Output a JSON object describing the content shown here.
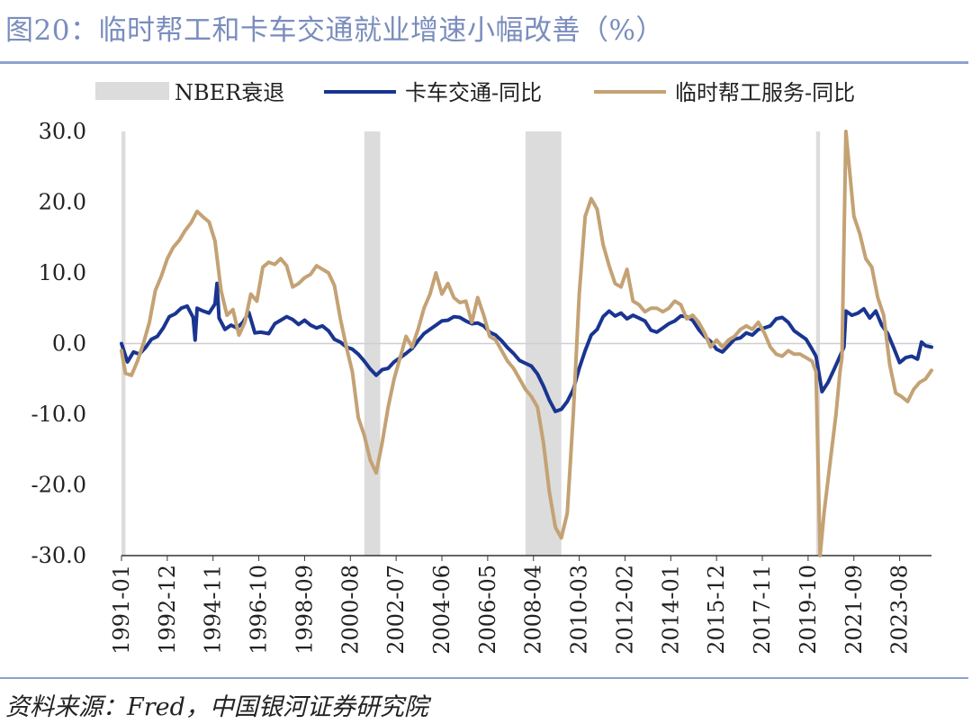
{
  "header": {
    "title": "图20：临时帮工和卡车交通就业增速小幅改善（%）"
  },
  "footer": {
    "source": "资料来源：Fred，中国银河证券研究院"
  },
  "chart_data": {
    "type": "line",
    "y_range": [
      -30,
      30
    ],
    "y_ticks": [
      "30.0",
      "20.0",
      "10.0",
      "0.0",
      "-10.0",
      "-20.0",
      "-30.0"
    ],
    "y_tick_values": [
      30,
      20,
      10,
      0,
      -10,
      -20,
      -30
    ],
    "x_range": [
      "1991-01",
      "2024-12"
    ],
    "x_ticks": [
      "1991-01",
      "1992-12",
      "1994-11",
      "1996-10",
      "1998-09",
      "2000-08",
      "2002-07",
      "2004-06",
      "2006-05",
      "2008-04",
      "2010-03",
      "2012-02",
      "2014-01",
      "2015-12",
      "2017-11",
      "2019-10",
      "2021-09",
      "2023-08"
    ],
    "legend": {
      "position": "top",
      "recession_label": "NBER衰退"
    },
    "recessions": [
      {
        "start": "1991-01",
        "end": "1991-03"
      },
      {
        "start": "2001-03",
        "end": "2001-11"
      },
      {
        "start": "2007-12",
        "end": "2009-06"
      },
      {
        "start": "2020-02",
        "end": "2020-04"
      }
    ],
    "colors": {
      "recession": "#dcdcdc",
      "truck": "#1a3590",
      "temp": "#c4a274",
      "axis": "#333333"
    },
    "series": [
      {
        "name": "卡车交通-同比",
        "color": "#1a3590",
        "points": [
          [
            "1991-01",
            0.0
          ],
          [
            "1991-04",
            -2.6
          ],
          [
            "1991-07",
            -1.2
          ],
          [
            "1991-10",
            -1.5
          ],
          [
            "1992-01",
            -0.6
          ],
          [
            "1992-04",
            0.6
          ],
          [
            "1992-07",
            1.0
          ],
          [
            "1992-10",
            2.2
          ],
          [
            "1993-01",
            3.8
          ],
          [
            "1993-04",
            4.2
          ],
          [
            "1993-07",
            5.0
          ],
          [
            "1993-10",
            5.3
          ],
          [
            "1994-01",
            3.7
          ],
          [
            "1994-02",
            0.5
          ],
          [
            "1994-03",
            5.0
          ],
          [
            "1994-06",
            4.6
          ],
          [
            "1994-09",
            4.3
          ],
          [
            "1994-12",
            5.6
          ],
          [
            "1995-01",
            8.5
          ],
          [
            "1995-02",
            3.6
          ],
          [
            "1995-05",
            2.0
          ],
          [
            "1995-08",
            2.6
          ],
          [
            "1995-11",
            2.2
          ],
          [
            "1996-02",
            3.0
          ],
          [
            "1996-05",
            4.4
          ],
          [
            "1996-08",
            1.5
          ],
          [
            "1996-11",
            1.6
          ],
          [
            "1997-03",
            1.4
          ],
          [
            "1997-06",
            2.8
          ],
          [
            "1997-09",
            3.3
          ],
          [
            "1997-12",
            3.8
          ],
          [
            "1998-03",
            3.4
          ],
          [
            "1998-06",
            2.7
          ],
          [
            "1998-09",
            3.3
          ],
          [
            "1998-12",
            2.6
          ],
          [
            "1999-03",
            2.2
          ],
          [
            "1999-06",
            2.5
          ],
          [
            "1999-09",
            1.8
          ],
          [
            "1999-12",
            0.6
          ],
          [
            "2000-03",
            0.2
          ],
          [
            "2000-06",
            -0.5
          ],
          [
            "2000-09",
            -0.8
          ],
          [
            "2000-12",
            -1.5
          ],
          [
            "2001-03",
            -2.5
          ],
          [
            "2001-06",
            -3.6
          ],
          [
            "2001-09",
            -4.5
          ],
          [
            "2001-12",
            -3.7
          ],
          [
            "2002-03",
            -3.5
          ],
          [
            "2002-06",
            -2.6
          ],
          [
            "2002-09",
            -2.0
          ],
          [
            "2002-12",
            -1.4
          ],
          [
            "2003-03",
            -0.7
          ],
          [
            "2003-06",
            0.4
          ],
          [
            "2003-09",
            1.4
          ],
          [
            "2003-12",
            2.0
          ],
          [
            "2004-03",
            2.6
          ],
          [
            "2004-06",
            3.2
          ],
          [
            "2004-09",
            3.3
          ],
          [
            "2004-12",
            3.8
          ],
          [
            "2005-03",
            3.7
          ],
          [
            "2005-06",
            3.2
          ],
          [
            "2005-09",
            2.8
          ],
          [
            "2005-12",
            2.9
          ],
          [
            "2006-03",
            2.5
          ],
          [
            "2006-06",
            1.6
          ],
          [
            "2006-09",
            1.2
          ],
          [
            "2006-12",
            0.4
          ],
          [
            "2007-03",
            -0.6
          ],
          [
            "2007-06",
            -1.4
          ],
          [
            "2007-09",
            -2.4
          ],
          [
            "2007-12",
            -2.8
          ],
          [
            "2008-03",
            -3.2
          ],
          [
            "2008-06",
            -4.3
          ],
          [
            "2008-09",
            -6.0
          ],
          [
            "2008-12",
            -8.0
          ],
          [
            "2009-03",
            -9.6
          ],
          [
            "2009-06",
            -9.3
          ],
          [
            "2009-09",
            -8.2
          ],
          [
            "2009-12",
            -6.5
          ],
          [
            "2010-03",
            -3.5
          ],
          [
            "2010-06",
            -1.0
          ],
          [
            "2010-09",
            1.2
          ],
          [
            "2010-12",
            2.0
          ],
          [
            "2011-03",
            3.8
          ],
          [
            "2011-06",
            4.6
          ],
          [
            "2011-09",
            3.9
          ],
          [
            "2011-12",
            4.3
          ],
          [
            "2012-03",
            3.5
          ],
          [
            "2012-06",
            4.0
          ],
          [
            "2012-09",
            3.6
          ],
          [
            "2012-12",
            3.2
          ],
          [
            "2013-03",
            1.9
          ],
          [
            "2013-06",
            1.6
          ],
          [
            "2013-09",
            2.2
          ],
          [
            "2013-12",
            2.8
          ],
          [
            "2014-03",
            3.2
          ],
          [
            "2014-06",
            3.9
          ],
          [
            "2014-09",
            3.8
          ],
          [
            "2014-12",
            3.3
          ],
          [
            "2015-03",
            2.0
          ],
          [
            "2015-06",
            1.0
          ],
          [
            "2015-09",
            0.3
          ],
          [
            "2015-12",
            -0.8
          ],
          [
            "2016-03",
            -1.2
          ],
          [
            "2016-06",
            -0.3
          ],
          [
            "2016-09",
            0.6
          ],
          [
            "2016-12",
            0.8
          ],
          [
            "2017-03",
            1.5
          ],
          [
            "2017-06",
            1.2
          ],
          [
            "2017-09",
            2.0
          ],
          [
            "2017-12",
            2.2
          ],
          [
            "2018-03",
            2.5
          ],
          [
            "2018-06",
            3.5
          ],
          [
            "2018-09",
            3.7
          ],
          [
            "2018-12",
            3.0
          ],
          [
            "2019-03",
            1.8
          ],
          [
            "2019-06",
            1.2
          ],
          [
            "2019-09",
            0.6
          ],
          [
            "2019-12",
            -0.8
          ],
          [
            "2020-02",
            -1.8
          ],
          [
            "2020-05",
            -6.8
          ],
          [
            "2020-08",
            -5.5
          ],
          [
            "2020-11",
            -3.7
          ],
          [
            "2021-02",
            -1.8
          ],
          [
            "2021-04",
            -0.5
          ],
          [
            "2021-05",
            4.6
          ],
          [
            "2021-08",
            4.0
          ],
          [
            "2021-11",
            4.3
          ],
          [
            "2022-02",
            4.9
          ],
          [
            "2022-05",
            3.6
          ],
          [
            "2022-08",
            4.6
          ],
          [
            "2022-11",
            2.6
          ],
          [
            "2023-02",
            1.4
          ],
          [
            "2023-05",
            -0.6
          ],
          [
            "2023-08",
            -2.7
          ],
          [
            "2023-11",
            -2.0
          ],
          [
            "2024-02",
            -1.8
          ],
          [
            "2024-05",
            -2.2
          ],
          [
            "2024-07",
            0.2
          ],
          [
            "2024-09",
            -0.3
          ],
          [
            "2024-12",
            -0.5
          ]
        ]
      },
      {
        "name": "临时帮工服务-同比",
        "color": "#c4a274",
        "points": [
          [
            "1991-01",
            -1.0
          ],
          [
            "1991-03",
            -4.2
          ],
          [
            "1991-06",
            -4.5
          ],
          [
            "1991-09",
            -2.5
          ],
          [
            "1991-12",
            0.0
          ],
          [
            "1992-03",
            3.0
          ],
          [
            "1992-06",
            7.5
          ],
          [
            "1992-09",
            9.5
          ],
          [
            "1992-12",
            12.0
          ],
          [
            "1993-03",
            13.6
          ],
          [
            "1993-06",
            14.6
          ],
          [
            "1993-09",
            16.0
          ],
          [
            "1993-12",
            17.1
          ],
          [
            "1994-03",
            18.7
          ],
          [
            "1994-06",
            17.9
          ],
          [
            "1994-09",
            17.2
          ],
          [
            "1994-12",
            14.5
          ],
          [
            "1995-03",
            7.5
          ],
          [
            "1995-06",
            4.0
          ],
          [
            "1995-09",
            4.8
          ],
          [
            "1995-12",
            1.2
          ],
          [
            "1996-03",
            3.0
          ],
          [
            "1996-06",
            7.0
          ],
          [
            "1996-09",
            6.0
          ],
          [
            "1996-12",
            10.8
          ],
          [
            "1997-03",
            11.5
          ],
          [
            "1997-06",
            11.2
          ],
          [
            "1997-09",
            12.0
          ],
          [
            "1997-12",
            11.0
          ],
          [
            "1998-03",
            8.0
          ],
          [
            "1998-06",
            8.5
          ],
          [
            "1998-09",
            9.3
          ],
          [
            "1998-12",
            9.8
          ],
          [
            "1999-03",
            11.0
          ],
          [
            "1999-06",
            10.5
          ],
          [
            "1999-09",
            10.0
          ],
          [
            "1999-12",
            8.2
          ],
          [
            "2000-03",
            3.5
          ],
          [
            "2000-06",
            -0.5
          ],
          [
            "2000-09",
            -4.0
          ],
          [
            "2000-12",
            -10.5
          ],
          [
            "2001-03",
            -13.0
          ],
          [
            "2001-06",
            -16.5
          ],
          [
            "2001-09",
            -18.3
          ],
          [
            "2001-12",
            -14.0
          ],
          [
            "2002-03",
            -9.0
          ],
          [
            "2002-06",
            -5.0
          ],
          [
            "2002-09",
            -2.0
          ],
          [
            "2002-12",
            1.0
          ],
          [
            "2003-03",
            -0.5
          ],
          [
            "2003-06",
            2.0
          ],
          [
            "2003-09",
            5.0
          ],
          [
            "2003-12",
            7.0
          ],
          [
            "2004-03",
            10.0
          ],
          [
            "2004-06",
            7.0
          ],
          [
            "2004-09",
            8.5
          ],
          [
            "2004-12",
            6.5
          ],
          [
            "2005-03",
            5.8
          ],
          [
            "2005-06",
            6.0
          ],
          [
            "2005-09",
            3.0
          ],
          [
            "2005-12",
            6.5
          ],
          [
            "2006-03",
            4.0
          ],
          [
            "2006-06",
            1.0
          ],
          [
            "2006-09",
            0.5
          ],
          [
            "2006-12",
            -1.0
          ],
          [
            "2007-03",
            -2.5
          ],
          [
            "2007-06",
            -3.5
          ],
          [
            "2007-09",
            -5.0
          ],
          [
            "2007-12",
            -6.5
          ],
          [
            "2008-03",
            -7.5
          ],
          [
            "2008-06",
            -9.0
          ],
          [
            "2008-09",
            -14.0
          ],
          [
            "2008-12",
            -21.0
          ],
          [
            "2009-03",
            -26.0
          ],
          [
            "2009-06",
            -27.5
          ],
          [
            "2009-09",
            -24.0
          ],
          [
            "2009-12",
            -10.0
          ],
          [
            "2010-03",
            7.0
          ],
          [
            "2010-06",
            18.0
          ],
          [
            "2010-09",
            20.5
          ],
          [
            "2010-12",
            19.0
          ],
          [
            "2011-03",
            14.0
          ],
          [
            "2011-06",
            11.0
          ],
          [
            "2011-09",
            8.5
          ],
          [
            "2011-12",
            8.0
          ],
          [
            "2012-03",
            10.5
          ],
          [
            "2012-06",
            6.0
          ],
          [
            "2012-09",
            5.5
          ],
          [
            "2012-12",
            4.5
          ],
          [
            "2013-03",
            5.0
          ],
          [
            "2013-06",
            5.0
          ],
          [
            "2013-09",
            4.5
          ],
          [
            "2013-12",
            5.0
          ],
          [
            "2014-03",
            6.0
          ],
          [
            "2014-06",
            5.5
          ],
          [
            "2014-09",
            3.5
          ],
          [
            "2014-12",
            4.0
          ],
          [
            "2015-03",
            3.0
          ],
          [
            "2015-06",
            1.5
          ],
          [
            "2015-09",
            -0.5
          ],
          [
            "2015-12",
            0.5
          ],
          [
            "2016-03",
            -0.5
          ],
          [
            "2016-06",
            0.5
          ],
          [
            "2016-09",
            1.0
          ],
          [
            "2016-12",
            2.0
          ],
          [
            "2017-03",
            2.5
          ],
          [
            "2017-06",
            2.0
          ],
          [
            "2017-09",
            3.0
          ],
          [
            "2017-12",
            1.5
          ],
          [
            "2018-03",
            -0.5
          ],
          [
            "2018-06",
            -1.5
          ],
          [
            "2018-09",
            -1.8
          ],
          [
            "2018-12",
            -1.0
          ],
          [
            "2019-03",
            -1.5
          ],
          [
            "2019-06",
            -1.5
          ],
          [
            "2019-09",
            -2.0
          ],
          [
            "2019-12",
            -2.5
          ],
          [
            "2020-02",
            -4.0
          ],
          [
            "2020-04",
            -30.0
          ],
          [
            "2020-06",
            -24.0
          ],
          [
            "2020-09",
            -17.0
          ],
          [
            "2020-12",
            -10.0
          ],
          [
            "2021-02",
            -4.0
          ],
          [
            "2021-03",
            -2.0
          ],
          [
            "2021-05",
            30.0
          ],
          [
            "2021-06",
            27.0
          ],
          [
            "2021-09",
            18.0
          ],
          [
            "2021-12",
            15.5
          ],
          [
            "2022-03",
            12.0
          ],
          [
            "2022-06",
            10.8
          ],
          [
            "2022-09",
            6.5
          ],
          [
            "2022-12",
            4.0
          ],
          [
            "2023-03",
            -3.0
          ],
          [
            "2023-06",
            -7.0
          ],
          [
            "2023-09",
            -7.5
          ],
          [
            "2023-12",
            -8.2
          ],
          [
            "2024-03",
            -6.5
          ],
          [
            "2024-06",
            -5.5
          ],
          [
            "2024-09",
            -5.0
          ],
          [
            "2024-12",
            -3.8
          ]
        ]
      }
    ]
  }
}
